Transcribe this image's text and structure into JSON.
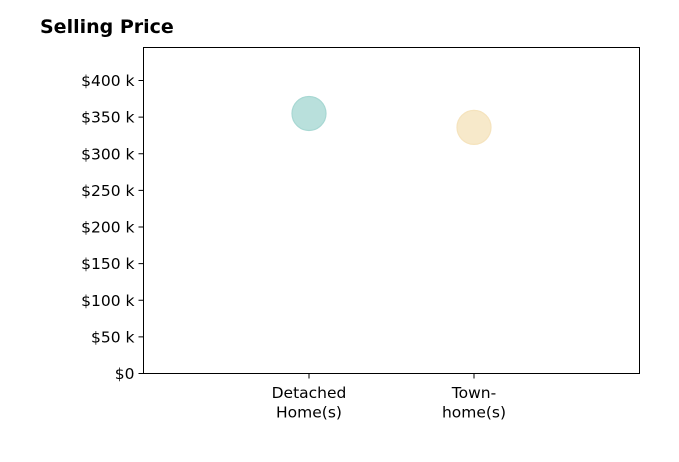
{
  "chart_data": {
    "type": "scatter",
    "title": "Selling Price",
    "xlabel": "",
    "ylabel": "",
    "categories": [
      "Detached Home(s)",
      "Town-home(s)"
    ],
    "category_tick_lines": [
      [
        "Detached",
        "Home(s)"
      ],
      [
        "Town-",
        "home(s)"
      ]
    ],
    "values": [
      355000,
      336000
    ],
    "colors": [
      "#a8d8d3",
      "#f5e3bd"
    ],
    "ylim": [
      0,
      445000
    ],
    "yticks": [
      0,
      50000,
      100000,
      150000,
      200000,
      250000,
      300000,
      350000,
      400000
    ],
    "ytick_labels": [
      "$0",
      "$50 k",
      "$100 k",
      "$150 k",
      "$200 k",
      "$250 k",
      "$300 k",
      "$350 k",
      "$400 k"
    ],
    "grid": false,
    "legend": "none"
  }
}
